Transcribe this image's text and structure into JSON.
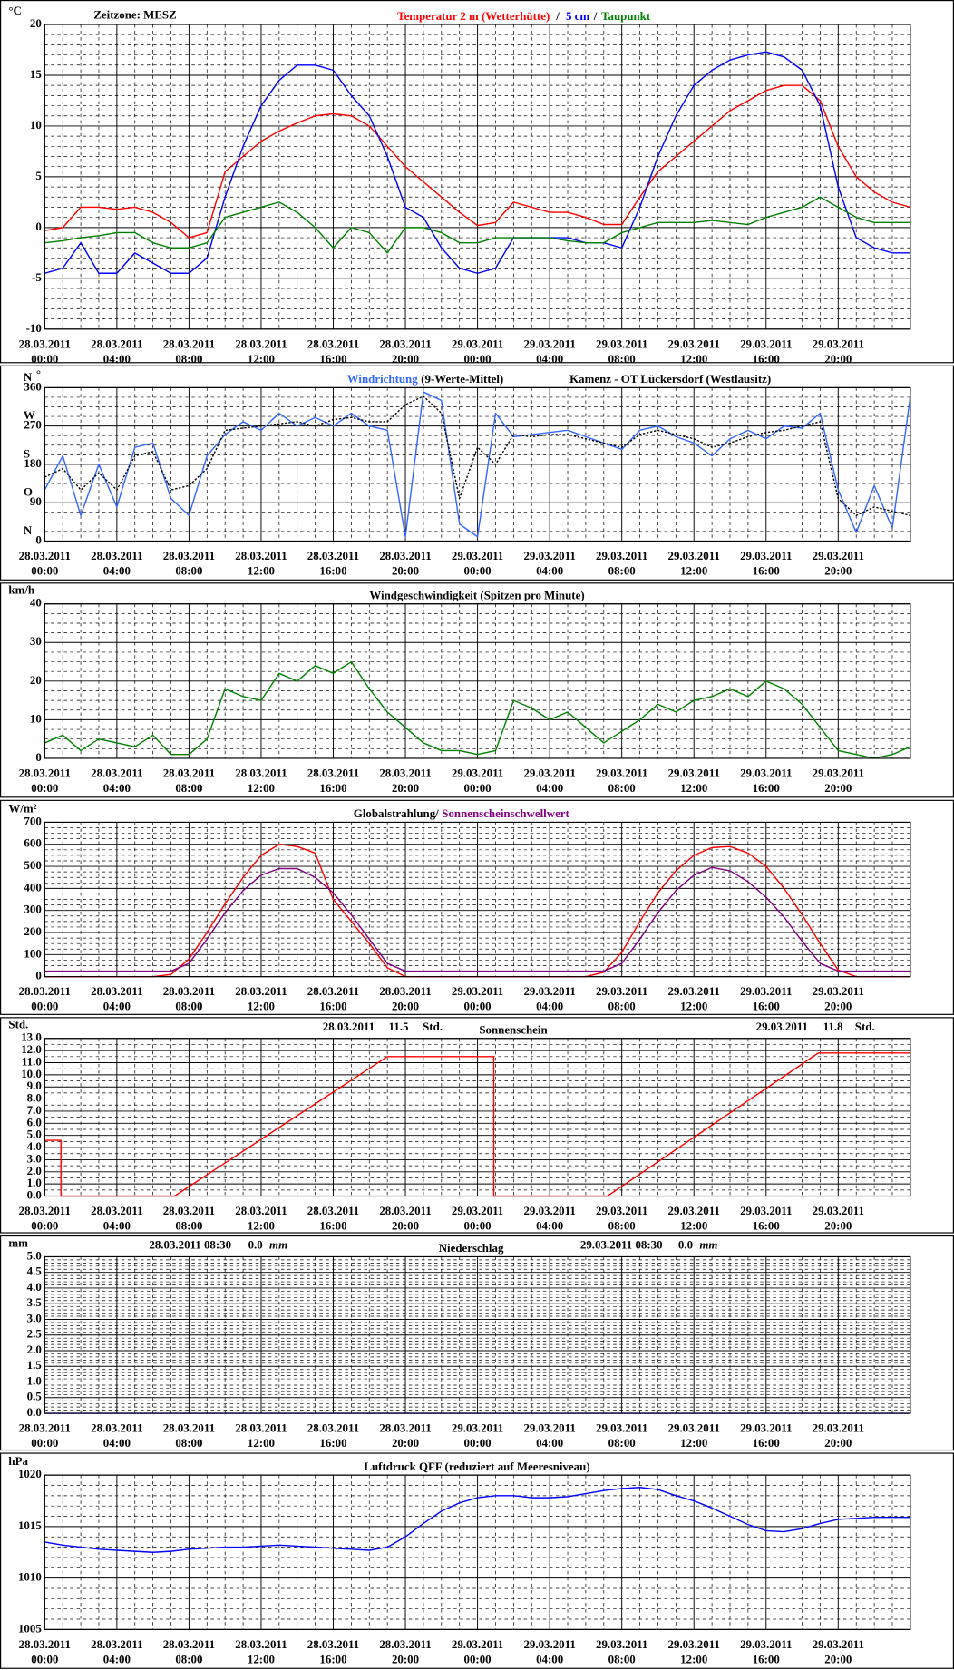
{
  "x_axis": {
    "xlim": [
      0,
      48
    ],
    "xticks": [
      {
        "value": 0,
        "date": "28.03.2011",
        "time": "00:00"
      },
      {
        "value": 4,
        "date": "28.03.2011",
        "time": "04:00"
      },
      {
        "value": 8,
        "date": "28.03.2011",
        "time": "08:00"
      },
      {
        "value": 12,
        "date": "28.03.2011",
        "time": "12:00"
      },
      {
        "value": 16,
        "date": "28.03.2011",
        "time": "16:00"
      },
      {
        "value": 20,
        "date": "28.03.2011",
        "time": "20:00"
      },
      {
        "value": 24,
        "date": "29.03.2011",
        "time": "00:00"
      },
      {
        "value": 28,
        "date": "29.03.2011",
        "time": "04:00"
      },
      {
        "value": 32,
        "date": "29.03.2011",
        "time": "08:00"
      },
      {
        "value": 36,
        "date": "29.03.2011",
        "time": "12:00"
      },
      {
        "value": 40,
        "date": "29.03.2011",
        "time": "16:00"
      },
      {
        "value": 44,
        "date": "29.03.2011",
        "time": "20:00"
      }
    ]
  },
  "chart_data": [
    {
      "type": "line",
      "timezone": "Zeitzone: MESZ",
      "title_separator": "/",
      "y_unit": "°C",
      "ylim": [
        -10,
        20
      ],
      "yticks": [
        -10,
        -5,
        0,
        5,
        10,
        15,
        20
      ],
      "grid": true,
      "x": [
        0,
        1,
        2,
        3,
        4,
        5,
        6,
        7,
        8,
        9,
        10,
        11,
        12,
        13,
        14,
        15,
        16,
        17,
        18,
        19,
        20,
        21,
        22,
        23,
        24,
        25,
        26,
        27,
        28,
        29,
        30,
        31,
        32,
        33,
        34,
        35,
        36,
        37,
        38,
        39,
        40,
        41,
        42,
        43,
        44,
        45,
        46,
        47,
        48
      ],
      "series": [
        {
          "name": "Temperatur 2 m (Wetterhütte)",
          "color": "#ff0000",
          "values": [
            -0.3,
            0,
            2,
            2,
            1.8,
            2,
            1.5,
            0.5,
            -1,
            -0.5,
            5.5,
            7,
            8.5,
            9.5,
            10.3,
            11,
            11.2,
            11,
            10,
            8,
            6,
            4.5,
            3,
            1.5,
            0.2,
            0.5,
            2.5,
            2,
            1.5,
            1.5,
            1,
            0.3,
            0.3,
            3,
            5.5,
            7,
            8.5,
            10,
            11.5,
            12.5,
            13.5,
            14,
            14,
            12.5,
            8,
            5,
            3.5,
            2.5,
            2
          ]
        },
        {
          "name": "5 cm",
          "color": "#0000ff",
          "values": [
            -4.5,
            -4,
            -1.5,
            -4.5,
            -4.5,
            -2.5,
            -3.5,
            -4.5,
            -4.5,
            -3,
            3,
            8,
            12,
            14.5,
            16,
            16,
            15.5,
            13,
            11,
            7,
            2,
            1,
            -2,
            -4,
            -4.5,
            -4,
            -1,
            -1,
            -1,
            -1,
            -1.5,
            -1.5,
            -2,
            2,
            7,
            11,
            14,
            15.5,
            16.5,
            17,
            17.3,
            16.8,
            15.5,
            12,
            4,
            -1,
            -2,
            -2.5,
            -2.5
          ]
        },
        {
          "name": "Taupunkt",
          "color": "#008000",
          "values": [
            -1.5,
            -1.3,
            -1,
            -0.8,
            -0.5,
            -0.5,
            -1.5,
            -2,
            -2,
            -1.5,
            1,
            1.5,
            2,
            2.5,
            1.5,
            0,
            -2,
            0,
            -0.5,
            -2.5,
            0,
            0,
            -0.5,
            -1.5,
            -1.5,
            -1,
            -1,
            -1,
            -1,
            -1.3,
            -1.5,
            -1.5,
            -0.5,
            0,
            0.5,
            0.5,
            0.5,
            0.7,
            0.5,
            0.3,
            1,
            1.5,
            2,
            3,
            2,
            1,
            0.5,
            0.5,
            0.5
          ]
        }
      ]
    },
    {
      "type": "line",
      "station": "Kamenz - OT Lückersdorf (Westlausitz)",
      "y_unit": "°",
      "ylim": [
        0,
        360
      ],
      "yticks": [
        0,
        90,
        180,
        270,
        360
      ],
      "grid": true,
      "compass_labels": [
        {
          "value": 0,
          "label": "N"
        },
        {
          "value": 90,
          "label": "O"
        },
        {
          "value": 180,
          "label": "S"
        },
        {
          "value": 270,
          "label": "W"
        },
        {
          "value": 360,
          "label": "N"
        }
      ],
      "x": [
        0,
        1,
        2,
        3,
        4,
        5,
        6,
        7,
        8,
        9,
        10,
        11,
        12,
        13,
        14,
        15,
        16,
        17,
        18,
        19,
        20,
        21,
        22,
        23,
        24,
        25,
        26,
        27,
        28,
        29,
        30,
        31,
        32,
        33,
        34,
        35,
        36,
        37,
        38,
        39,
        40,
        41,
        42,
        43,
        44,
        45,
        46,
        47,
        48
      ],
      "series": [
        {
          "name": "Windrichtung",
          "color": "#3366ff",
          "values": [
            120,
            200,
            60,
            180,
            80,
            220,
            230,
            100,
            60,
            200,
            250,
            280,
            260,
            300,
            270,
            290,
            270,
            300,
            270,
            260,
            10,
            350,
            330,
            40,
            10,
            300,
            245,
            250,
            255,
            260,
            245,
            230,
            215,
            260,
            270,
            245,
            230,
            200,
            240,
            260,
            240,
            270,
            265,
            300,
            120,
            20,
            130,
            30,
            340
          ]
        },
        {
          "name": "(9-Werte-Mittel)",
          "color": "#000000",
          "line_style": "dotted",
          "values": [
            150,
            170,
            120,
            160,
            120,
            200,
            210,
            120,
            130,
            170,
            260,
            265,
            270,
            275,
            280,
            270,
            285,
            290,
            280,
            280,
            320,
            340,
            300,
            100,
            220,
            180,
            250,
            245,
            250,
            250,
            240,
            230,
            220,
            250,
            260,
            250,
            240,
            220,
            230,
            245,
            255,
            260,
            270,
            280,
            100,
            60,
            80,
            70,
            60
          ]
        }
      ]
    },
    {
      "type": "line",
      "title": "Windgeschwindigkeit (Spitzen pro Minute)",
      "y_unit": "km/h",
      "ylim": [
        0,
        40
      ],
      "yticks": [
        0,
        10,
        20,
        30,
        40
      ],
      "grid": true,
      "x": [
        0,
        1,
        2,
        3,
        4,
        5,
        6,
        7,
        8,
        9,
        10,
        11,
        12,
        13,
        14,
        15,
        16,
        17,
        18,
        19,
        20,
        21,
        22,
        23,
        24,
        25,
        26,
        27,
        28,
        29,
        30,
        31,
        32,
        33,
        34,
        35,
        36,
        37,
        38,
        39,
        40,
        41,
        42,
        43,
        44,
        45,
        46,
        47,
        48
      ],
      "series": [
        {
          "color": "#008000",
          "values": [
            4,
            6,
            2,
            5,
            4,
            3,
            6,
            1,
            1,
            5,
            18,
            16,
            15,
            22,
            20,
            24,
            22,
            25,
            18,
            12,
            8,
            4,
            2,
            2,
            1,
            2,
            15,
            13,
            10,
            12,
            8,
            4,
            7,
            10,
            14,
            12,
            15,
            16,
            18,
            16,
            20,
            18,
            14,
            8,
            2,
            1,
            0,
            1,
            3
          ]
        }
      ]
    },
    {
      "type": "line",
      "title_separator": "/",
      "y_unit": "W/m²",
      "ylim": [
        0,
        700
      ],
      "yticks": [
        0,
        100,
        200,
        300,
        400,
        500,
        600,
        700
      ],
      "grid": true,
      "x": [
        0,
        1,
        2,
        3,
        4,
        5,
        6,
        7,
        8,
        9,
        10,
        11,
        12,
        13,
        14,
        15,
        16,
        17,
        18,
        19,
        20,
        21,
        22,
        23,
        24,
        25,
        26,
        27,
        28,
        29,
        30,
        31,
        32,
        33,
        34,
        35,
        36,
        37,
        38,
        39,
        40,
        41,
        42,
        43,
        44,
        45,
        46,
        47,
        48
      ],
      "series": [
        {
          "name": "Globalstrahlung",
          "color": "#ff0000",
          "label_color": "#000000",
          "values": [
            0,
            0,
            0,
            0,
            0,
            0,
            0,
            10,
            80,
            200,
            330,
            450,
            550,
            600,
            590,
            560,
            350,
            250,
            150,
            40,
            0,
            0,
            0,
            0,
            0,
            0,
            0,
            0,
            0,
            0,
            0,
            20,
            110,
            250,
            380,
            480,
            550,
            585,
            590,
            560,
            500,
            400,
            280,
            150,
            30,
            0,
            0,
            0,
            0
          ]
        },
        {
          "name": "Sonnenscheinschwellwert",
          "color": "#800080",
          "label_color": "#800080",
          "values": [
            25,
            25,
            25,
            25,
            25,
            25,
            25,
            25,
            60,
            170,
            290,
            390,
            460,
            490,
            490,
            450,
            380,
            280,
            170,
            60,
            25,
            25,
            25,
            25,
            25,
            25,
            25,
            25,
            25,
            25,
            25,
            25,
            60,
            170,
            290,
            390,
            460,
            495,
            480,
            430,
            360,
            270,
            160,
            60,
            25,
            25,
            25,
            25,
            25
          ]
        }
      ]
    },
    {
      "type": "line",
      "title": "Sonnenschein",
      "y_unit": "Std.",
      "ylim": [
        0,
        13
      ],
      "yticks": [
        {
          "value": 0,
          "label": "0.0"
        },
        {
          "value": 1,
          "label": "1.0"
        },
        {
          "value": 2,
          "label": "2.0"
        },
        {
          "value": 3,
          "label": "3.0"
        },
        {
          "value": 4,
          "label": "4.0"
        },
        {
          "value": 5,
          "label": "5.0"
        },
        {
          "value": 6,
          "label": "6.0"
        },
        {
          "value": 7,
          "label": "7.0"
        },
        {
          "value": 8,
          "label": "8.0"
        },
        {
          "value": 9,
          "label": "9.0"
        },
        {
          "value": 10,
          "label": "10.0"
        },
        {
          "value": 11,
          "label": "11.0"
        },
        {
          "value": 12,
          "label": "12.0"
        },
        {
          "value": 13,
          "label": "13.0"
        }
      ],
      "grid": true,
      "daily_totals": [
        {
          "date": "28.03.2011",
          "value": 11.5,
          "unit": "Std."
        },
        {
          "date": "29.03.2011",
          "value": 11.8,
          "unit": "Std."
        }
      ],
      "x": [
        0,
        0.9,
        0.9,
        7.2,
        19,
        24.9,
        24.9,
        31.2,
        42.9,
        48
      ],
      "series": [
        {
          "color": "#ff0000",
          "values": [
            4.6,
            4.6,
            0,
            0,
            11.5,
            11.5,
            0,
            0,
            11.8,
            11.8
          ]
        }
      ]
    },
    {
      "type": "line",
      "title": "Niederschlag",
      "y_unit": "mm",
      "ylim": [
        0,
        5
      ],
      "yticks": [
        {
          "value": 0,
          "label": "0.0"
        },
        {
          "value": 0.5,
          "label": "0.5"
        },
        {
          "value": 1,
          "label": "1.0"
        },
        {
          "value": 1.5,
          "label": "1.5"
        },
        {
          "value": 2,
          "label": "2.0"
        },
        {
          "value": 2.5,
          "label": "2.5"
        },
        {
          "value": 3,
          "label": "3.0"
        },
        {
          "value": 3.5,
          "label": "3.5"
        },
        {
          "value": 4,
          "label": "4.0"
        },
        {
          "value": 4.5,
          "label": "4.5"
        },
        {
          "value": 5,
          "label": "5.0"
        }
      ],
      "grid": true,
      "daily_totals": [
        {
          "date": "28.03.2011 08:30",
          "value": 0,
          "value_label": "0.0",
          "unit": "mm"
        },
        {
          "date": "29.03.2011 08:30",
          "value": 0,
          "value_label": "0.0",
          "unit": "mm"
        }
      ],
      "x": [
        0,
        48
      ],
      "series": [
        {
          "color": "#0000ff",
          "values": [
            0,
            0
          ]
        }
      ]
    },
    {
      "type": "line",
      "title": "Luftdruck QFF (reduziert auf Meeresniveau)",
      "y_unit": "hPa",
      "ylim": [
        1005,
        1020
      ],
      "yticks": [
        1005,
        1010,
        1015,
        1020
      ],
      "grid": true,
      "x": [
        0,
        1,
        2,
        3,
        4,
        5,
        6,
        7,
        8,
        9,
        10,
        11,
        12,
        13,
        14,
        15,
        16,
        17,
        18,
        19,
        20,
        21,
        22,
        23,
        24,
        25,
        26,
        27,
        28,
        29,
        30,
        31,
        32,
        33,
        34,
        35,
        36,
        37,
        38,
        39,
        40,
        41,
        42,
        43,
        44,
        45,
        46,
        47,
        48
      ],
      "series": [
        {
          "color": "#0000ff",
          "values": [
            1013.5,
            1013.2,
            1013,
            1012.8,
            1012.7,
            1012.6,
            1012.5,
            1012.6,
            1012.8,
            1012.9,
            1013,
            1013,
            1013.1,
            1013.2,
            1013.1,
            1013,
            1012.9,
            1012.8,
            1012.7,
            1013,
            1014,
            1015.3,
            1016.5,
            1017.3,
            1017.8,
            1018,
            1018,
            1017.8,
            1017.8,
            1017.9,
            1018.2,
            1018.5,
            1018.7,
            1018.8,
            1018.6,
            1018,
            1017.5,
            1016.8,
            1016,
            1015.2,
            1014.6,
            1014.5,
            1014.8,
            1015.3,
            1015.7,
            1015.8,
            1015.9,
            1015.9,
            1015.9
          ]
        }
      ]
    }
  ]
}
